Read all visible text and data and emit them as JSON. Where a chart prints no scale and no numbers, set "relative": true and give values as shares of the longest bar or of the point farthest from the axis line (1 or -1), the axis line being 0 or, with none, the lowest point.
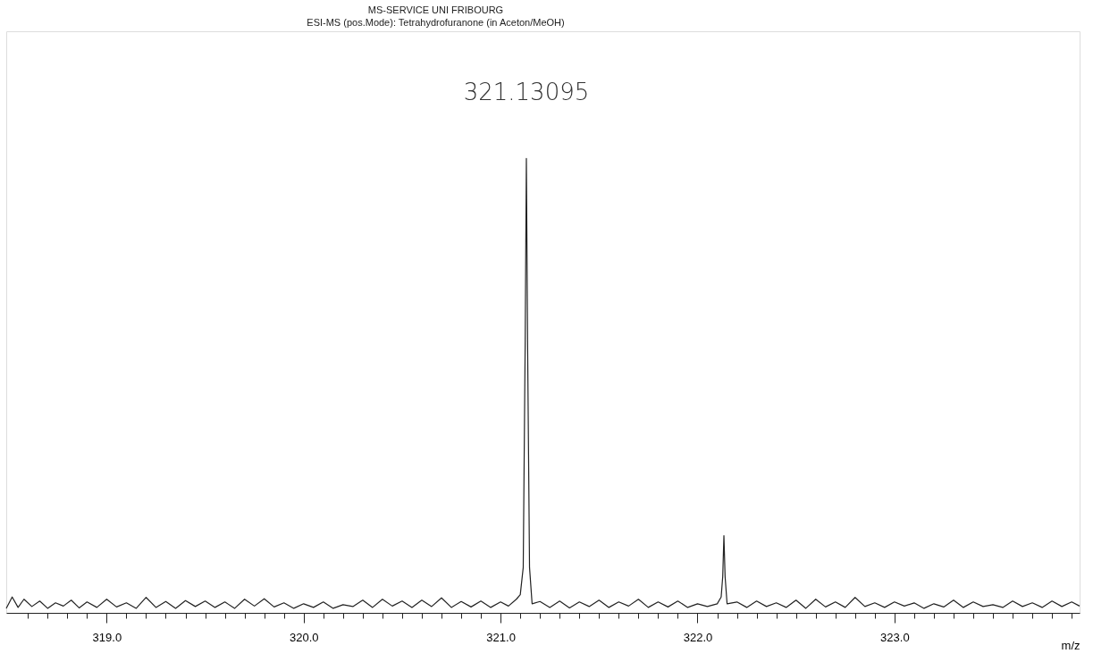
{
  "chart_data": {
    "type": "line",
    "relative": true,
    "title": "MS-SERVICE   UNI  FRIBOURG",
    "subtitle": "ESI-MS (pos.Mode):   Tetrahydrofuranone      (in Aceton/MeOH)",
    "xlabel": "m/z",
    "xlim": [
      318.49,
      323.94
    ],
    "xticks": [
      {
        "value": 318.6,
        "label": null
      },
      {
        "value": 318.7,
        "label": null
      },
      {
        "value": 318.8,
        "label": null
      },
      {
        "value": 318.9,
        "label": null
      },
      {
        "value": 319,
        "label": "319.0"
      },
      {
        "value": 319.1,
        "label": null
      },
      {
        "value": 319.2,
        "label": null
      },
      {
        "value": 319.3,
        "label": null
      },
      {
        "value": 319.4,
        "label": null
      },
      {
        "value": 319.5,
        "label": null
      },
      {
        "value": 319.6,
        "label": null
      },
      {
        "value": 319.7,
        "label": null
      },
      {
        "value": 319.8,
        "label": null
      },
      {
        "value": 319.9,
        "label": null
      },
      {
        "value": 320,
        "label": "320.0"
      },
      {
        "value": 320.1,
        "label": null
      },
      {
        "value": 320.2,
        "label": null
      },
      {
        "value": 320.3,
        "label": null
      },
      {
        "value": 320.4,
        "label": null
      },
      {
        "value": 320.5,
        "label": null
      },
      {
        "value": 320.6,
        "label": null
      },
      {
        "value": 320.7,
        "label": null
      },
      {
        "value": 320.8,
        "label": null
      },
      {
        "value": 320.9,
        "label": null
      },
      {
        "value": 321,
        "label": "321.0"
      },
      {
        "value": 321.1,
        "label": null
      },
      {
        "value": 321.2,
        "label": null
      },
      {
        "value": 321.3,
        "label": null
      },
      {
        "value": 321.4,
        "label": null
      },
      {
        "value": 321.5,
        "label": null
      },
      {
        "value": 321.6,
        "label": null
      },
      {
        "value": 321.7,
        "label": null
      },
      {
        "value": 321.8,
        "label": null
      },
      {
        "value": 321.9,
        "label": null
      },
      {
        "value": 322,
        "label": "322.0"
      },
      {
        "value": 322.1,
        "label": null
      },
      {
        "value": 322.2,
        "label": null
      },
      {
        "value": 322.3,
        "label": null
      },
      {
        "value": 322.4,
        "label": null
      },
      {
        "value": 322.5,
        "label": null
      },
      {
        "value": 322.6,
        "label": null
      },
      {
        "value": 322.7,
        "label": null
      },
      {
        "value": 322.8,
        "label": null
      },
      {
        "value": 322.9,
        "label": null
      },
      {
        "value": 323,
        "label": "323.0"
      },
      {
        "value": 323.1,
        "label": null
      },
      {
        "value": 323.2,
        "label": null
      },
      {
        "value": 323.3,
        "label": null
      },
      {
        "value": 323.4,
        "label": null
      },
      {
        "value": 323.5,
        "label": null
      },
      {
        "value": 323.6,
        "label": null
      },
      {
        "value": 323.7,
        "label": null
      },
      {
        "value": 323.8,
        "label": null
      },
      {
        "value": 323.9,
        "label": null
      }
    ],
    "annotations": [
      {
        "text": "321.13095",
        "x": 321.13095,
        "y": 1
      }
    ],
    "series": [
      {
        "color": "#222222",
        "x": [
          318.49,
          318.52,
          318.55,
          318.58,
          318.62,
          318.66,
          318.7,
          318.74,
          318.78,
          318.82,
          318.86,
          318.9,
          318.95,
          319.0,
          319.05,
          319.1,
          319.15,
          319.2,
          319.25,
          319.3,
          319.35,
          319.4,
          319.45,
          319.5,
          319.55,
          319.6,
          319.65,
          319.7,
          319.75,
          319.8,
          319.85,
          319.9,
          319.95,
          320.0,
          320.05,
          320.1,
          320.15,
          320.2,
          320.25,
          320.3,
          320.35,
          320.4,
          320.45,
          320.5,
          320.55,
          320.6,
          320.65,
          320.7,
          320.75,
          320.8,
          320.85,
          320.9,
          320.95,
          321.0,
          321.04,
          321.08,
          321.1,
          321.115,
          321.125,
          321.13095,
          321.137,
          321.147,
          321.16,
          321.2,
          321.25,
          321.3,
          321.35,
          321.4,
          321.45,
          321.5,
          321.55,
          321.6,
          321.65,
          321.7,
          321.75,
          321.8,
          321.85,
          321.9,
          321.95,
          322.0,
          322.05,
          322.1,
          322.12,
          322.128,
          322.134,
          322.14,
          322.15,
          322.2,
          322.25,
          322.3,
          322.35,
          322.4,
          322.45,
          322.5,
          322.55,
          322.6,
          322.65,
          322.7,
          322.75,
          322.8,
          322.85,
          322.9,
          322.95,
          323.0,
          323.05,
          323.1,
          323.15,
          323.2,
          323.25,
          323.3,
          323.35,
          323.4,
          323.45,
          323.5,
          323.55,
          323.6,
          323.65,
          323.7,
          323.75,
          323.8,
          323.85,
          323.9,
          323.94
        ],
        "values": [
          0.01,
          0.035,
          0.012,
          0.03,
          0.014,
          0.026,
          0.01,
          0.022,
          0.015,
          0.028,
          0.011,
          0.024,
          0.012,
          0.03,
          0.013,
          0.022,
          0.01,
          0.034,
          0.012,
          0.025,
          0.01,
          0.027,
          0.014,
          0.026,
          0.012,
          0.024,
          0.01,
          0.03,
          0.015,
          0.031,
          0.013,
          0.022,
          0.01,
          0.02,
          0.012,
          0.024,
          0.01,
          0.018,
          0.014,
          0.028,
          0.012,
          0.03,
          0.015,
          0.026,
          0.012,
          0.028,
          0.014,
          0.033,
          0.012,
          0.025,
          0.013,
          0.026,
          0.012,
          0.024,
          0.015,
          0.03,
          0.04,
          0.1,
          0.6,
          1,
          0.6,
          0.1,
          0.02,
          0.025,
          0.012,
          0.026,
          0.011,
          0.024,
          0.014,
          0.028,
          0.012,
          0.024,
          0.015,
          0.03,
          0.012,
          0.024,
          0.013,
          0.026,
          0.012,
          0.02,
          0.014,
          0.02,
          0.035,
          0.08,
          0.17,
          0.08,
          0.02,
          0.024,
          0.012,
          0.026,
          0.014,
          0.022,
          0.012,
          0.028,
          0.01,
          0.03,
          0.013,
          0.024,
          0.012,
          0.034,
          0.014,
          0.022,
          0.012,
          0.024,
          0.015,
          0.022,
          0.01,
          0.02,
          0.013,
          0.028,
          0.012,
          0.024,
          0.014,
          0.018,
          0.012,
          0.026,
          0.014,
          0.022,
          0.012,
          0.026,
          0.014,
          0.024,
          0.015
        ]
      }
    ]
  }
}
